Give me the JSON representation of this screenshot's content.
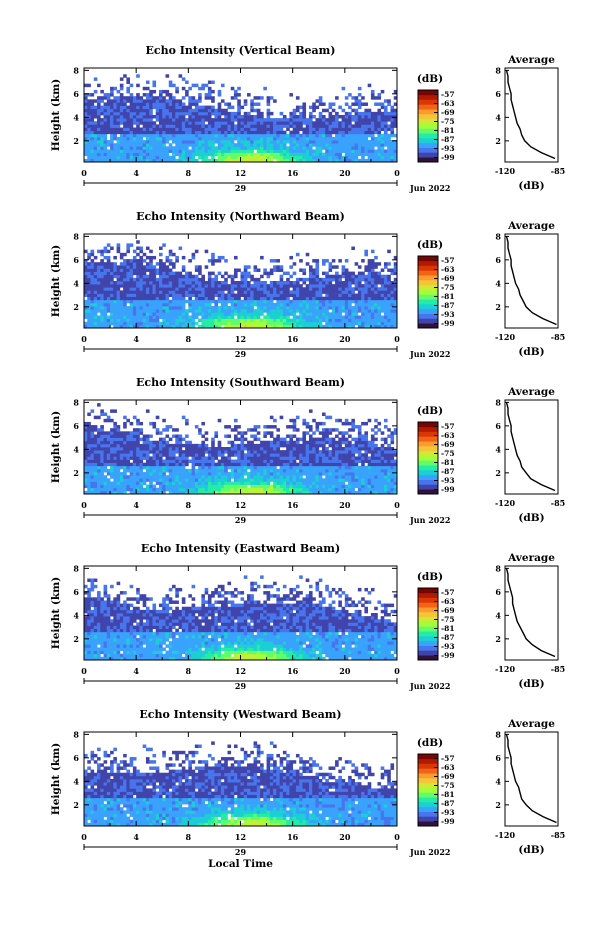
{
  "chart_data": [
    {
      "type": "heatmap",
      "title": "Echo Intensity (Vertical Beam)",
      "ylabel": "Height (km)",
      "xlabel": "",
      "x_ticks": [
        "0",
        "4",
        "8",
        "12",
        "16",
        "20",
        "0"
      ],
      "y_ticks": [
        "2",
        "4",
        "6",
        "8"
      ],
      "xlim": [
        0,
        24
      ],
      "ylim": [
        0.2,
        8.2
      ],
      "date_day": "29",
      "date_month_year": "Jun 2022",
      "colorbar": {
        "unit": "(dB)",
        "ticks": [
          "-57",
          "-63",
          "-69",
          "-75",
          "-81",
          "-87",
          "-93",
          "-99"
        ],
        "range": [
          -102,
          -54
        ]
      },
      "profile": {
        "title": "Average",
        "xlabel": "(dB)",
        "x_ticks": [
          "-120",
          "-85"
        ],
        "y_ticks": [
          "2",
          "4",
          "6",
          "8"
        ],
        "xlim": [
          -120,
          -85
        ],
        "ylim": [
          0.2,
          8.2
        ],
        "heights": [
          0.5,
          1,
          1.5,
          2,
          2.5,
          3,
          3.5,
          4,
          4.5,
          5,
          5.5,
          6,
          6.5,
          7,
          7.5,
          8
        ],
        "values": [
          -87,
          -96,
          -103,
          -107,
          -109,
          -110,
          -112,
          -113,
          -114,
          -115,
          -116,
          -116,
          -117,
          -118,
          -118,
          -119
        ]
      }
    },
    {
      "type": "heatmap",
      "title": "Echo Intensity (Northward Beam)",
      "ylabel": "Height (km)",
      "xlabel": "",
      "x_ticks": [
        "0",
        "4",
        "8",
        "12",
        "16",
        "20",
        "0"
      ],
      "y_ticks": [
        "2",
        "4",
        "6",
        "8"
      ],
      "xlim": [
        0,
        24
      ],
      "ylim": [
        0.2,
        8.2
      ],
      "date_day": "29",
      "date_month_year": "Jun 2022",
      "colorbar": {
        "unit": "(dB)",
        "ticks": [
          "-57",
          "-63",
          "-69",
          "-75",
          "-81",
          "-87",
          "-93",
          "-99"
        ],
        "range": [
          -102,
          -54
        ]
      },
      "profile": {
        "title": "Average",
        "xlabel": "(dB)",
        "x_ticks": [
          "-120",
          "-85"
        ],
        "y_ticks": [
          "2",
          "4",
          "6",
          "8"
        ],
        "xlim": [
          -120,
          -85
        ],
        "ylim": [
          0.2,
          8.2
        ],
        "heights": [
          0.5,
          1,
          1.5,
          2,
          2.5,
          3,
          3.5,
          4,
          4.5,
          5,
          5.5,
          6,
          6.5,
          7,
          7.5,
          8
        ],
        "values": [
          -86,
          -95,
          -102,
          -106,
          -108,
          -110,
          -111,
          -113,
          -114,
          -115,
          -116,
          -116,
          -117,
          -118,
          -118,
          -119
        ]
      }
    },
    {
      "type": "heatmap",
      "title": "Echo Intensity (Southward Beam)",
      "ylabel": "Height (km)",
      "xlabel": "",
      "x_ticks": [
        "0",
        "4",
        "8",
        "12",
        "16",
        "20",
        "0"
      ],
      "y_ticks": [
        "2",
        "4",
        "6",
        "8"
      ],
      "xlim": [
        0,
        24
      ],
      "ylim": [
        0.2,
        8.2
      ],
      "date_day": "29",
      "date_month_year": "Jun 2022",
      "colorbar": {
        "unit": "(dB)",
        "ticks": [
          "-57",
          "-63",
          "-69",
          "-75",
          "-81",
          "-87",
          "-93",
          "-99"
        ],
        "range": [
          -102,
          -54
        ]
      },
      "profile": {
        "title": "Average",
        "xlabel": "(dB)",
        "x_ticks": [
          "-120",
          "-85"
        ],
        "y_ticks": [
          "2",
          "4",
          "6",
          "8"
        ],
        "xlim": [
          -120,
          -85
        ],
        "ylim": [
          0.2,
          8.2
        ],
        "heights": [
          0.5,
          1,
          1.5,
          2,
          2.5,
          3,
          3.5,
          4,
          4.5,
          5,
          5.5,
          6,
          6.5,
          7,
          7.5,
          8
        ],
        "values": [
          -87,
          -96,
          -103,
          -106,
          -109,
          -110,
          -112,
          -113,
          -114,
          -115,
          -116,
          -116,
          -117,
          -118,
          -118,
          -119
        ]
      }
    },
    {
      "type": "heatmap",
      "title": "Echo Intensity (Eastward Beam)",
      "ylabel": "Height (km)",
      "xlabel": "",
      "x_ticks": [
        "0",
        "4",
        "8",
        "12",
        "16",
        "20",
        "0"
      ],
      "y_ticks": [
        "2",
        "4",
        "6",
        "8"
      ],
      "xlim": [
        0,
        24
      ],
      "ylim": [
        0.2,
        8.2
      ],
      "date_day": "29",
      "date_month_year": "Jun 2022",
      "colorbar": {
        "unit": "(dB)",
        "ticks": [
          "-57",
          "-63",
          "-69",
          "-75",
          "-81",
          "-87",
          "-93",
          "-99"
        ],
        "range": [
          -102,
          -54
        ]
      },
      "profile": {
        "title": "Average",
        "xlabel": "(dB)",
        "x_ticks": [
          "-120",
          "-85"
        ],
        "y_ticks": [
          "2",
          "4",
          "6",
          "8"
        ],
        "xlim": [
          -120,
          -85
        ],
        "ylim": [
          0.2,
          8.2
        ],
        "heights": [
          0.5,
          1,
          1.5,
          2,
          2.5,
          3,
          3.5,
          4,
          4.5,
          5,
          5.5,
          6,
          6.5,
          7,
          7.5,
          8
        ],
        "values": [
          -87,
          -96,
          -102,
          -106,
          -108,
          -110,
          -112,
          -113,
          -114,
          -115,
          -115,
          -116,
          -117,
          -118,
          -118,
          -119
        ]
      }
    },
    {
      "type": "heatmap",
      "title": "Echo Intensity (Westward Beam)",
      "ylabel": "Height (km)",
      "xlabel": "Local Time",
      "x_ticks": [
        "0",
        "4",
        "8",
        "12",
        "16",
        "20",
        "0"
      ],
      "y_ticks": [
        "2",
        "4",
        "6",
        "8"
      ],
      "xlim": [
        0,
        24
      ],
      "ylim": [
        0.2,
        8.2
      ],
      "date_day": "29",
      "date_month_year": "Jun 2022",
      "colorbar": {
        "unit": "(dB)",
        "ticks": [
          "-57",
          "-63",
          "-69",
          "-75",
          "-81",
          "-87",
          "-93",
          "-99"
        ],
        "range": [
          -102,
          -54
        ]
      },
      "profile": {
        "title": "Average",
        "xlabel": "(dB)",
        "x_ticks": [
          "-120",
          "-85"
        ],
        "y_ticks": [
          "2",
          "4",
          "6",
          "8"
        ],
        "xlim": [
          -120,
          -85
        ],
        "ylim": [
          0.2,
          8.2
        ],
        "heights": [
          0.5,
          1,
          1.5,
          2,
          2.5,
          3,
          3.5,
          4,
          4.5,
          5,
          5.5,
          6,
          6.5,
          7,
          7.5,
          8
        ],
        "values": [
          -86,
          -95,
          -102,
          -106,
          -109,
          -110,
          -111,
          -113,
          -114,
          -115,
          -116,
          -116,
          -117,
          -118,
          -118,
          -119
        ]
      }
    }
  ],
  "colors": {
    "colormap": [
      "#30123b",
      "#4145ab",
      "#4675ed",
      "#39a2fc",
      "#1bcfd4",
      "#24eca6",
      "#61fc6c",
      "#a4fc3b",
      "#d1e834",
      "#f3c63a",
      "#fe9b2d",
      "#f36315",
      "#d93806",
      "#b11901",
      "#7a0403"
    ],
    "line": "#000000",
    "background": "#ffffff"
  }
}
